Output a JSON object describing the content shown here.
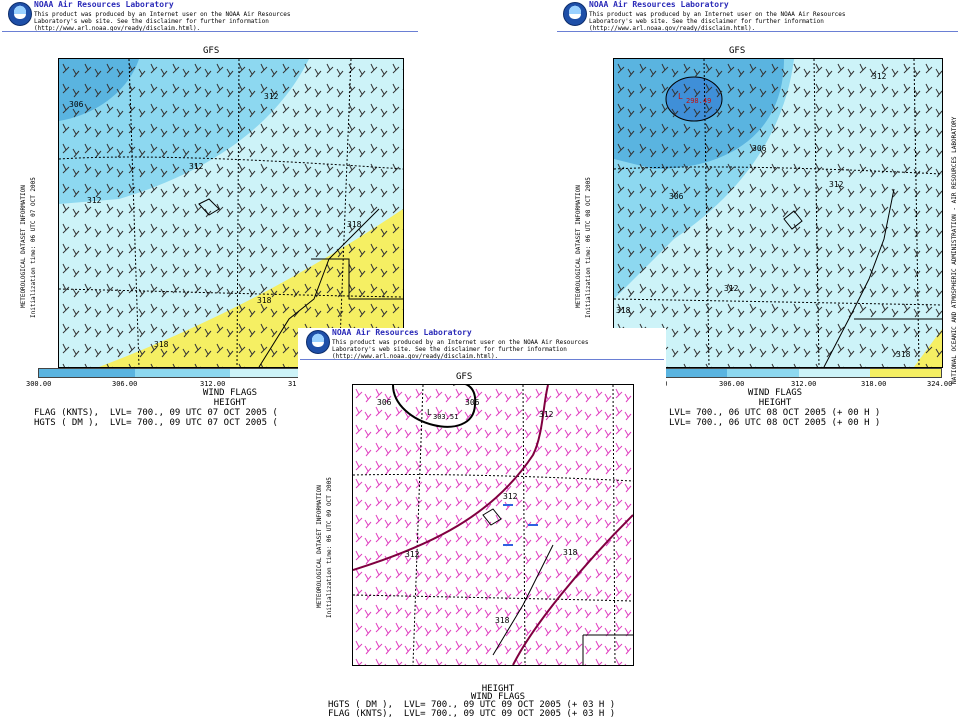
{
  "header": {
    "org": "NOAA Air Resources Laboratory",
    "disclaimer": "This product was produced by an Internet user on the NOAA Air Resources Laboratory's web site.  See the disclaimer for further information (http://www.arl.noaa.gov/ready/disclaim.html)."
  },
  "side_labels": {
    "dataset": "METEOROLOGICAL DATASET INFORMATION",
    "lab": "NATIONAL OCEANIC AND ATMOSPHERIC ADMINISTRATION - AIR RESOURCES LABORATORY"
  },
  "colors": {
    "c300": "#5ab4e0",
    "c306": "#8dd8f0",
    "c312": "#cdf3f8",
    "c318": "#f5ef63",
    "dark": "#3f8fd8",
    "wind_dark": "#333333",
    "wind_pink": "#e040c0",
    "wind_blue": "#3060e0"
  },
  "legend": {
    "ticks": [
      "300.00",
      "306.00",
      "312.00",
      "318.00",
      "324.00"
    ]
  },
  "panels": {
    "left": {
      "model": "GFS",
      "init_time": "Initialization time: 06 UTC 07 OCT 2005",
      "wind_label": "WIND FLAGS",
      "height_label": "HEIGHT",
      "line1": "FLAG (KNTS),  LVL= 700., 09 UTC 07 OCT 2005 (",
      "line2": "HGTS ( DM ),  LVL= 700., 09 UTC 07 OCT 2005 (",
      "ticks": [
        "300.00",
        "306.00",
        "312.00",
        "31"
      ],
      "contours": [
        "306",
        "312",
        "312",
        "312",
        "318",
        "318",
        "318"
      ]
    },
    "right": {
      "model": "GFS",
      "init_time": "Initialization time: 06 UTC 08 OCT 2005",
      "wind_label": "WIND FLAGS",
      "height_label": "HEIGHT",
      "line1": "LVL= 700., 06 UTC 08 OCT 2005 (+ 00 H )",
      "line2": "LVL= 700., 06 UTC 08 OCT 2005 (+ 00 H )",
      "ticks": [
        "00",
        "306.00",
        "312.00",
        "318.00",
        "324.00"
      ],
      "contours": [
        "312",
        "306",
        "306",
        "312",
        "312",
        "318",
        "318",
        "L",
        "298.49"
      ]
    },
    "center": {
      "model": "GFS",
      "init_time": "Initialization time: 06 UTC 09 OCT 2005",
      "height_label": "HEIGHT",
      "wind_label": "WIND FLAGS",
      "line1": "HGTS ( DM ),  LVL= 700., 09 UTC 09 OCT 2005 (+ 03 H )",
      "line2": "FLAG (KNTS),  LVL= 700., 09 UTC 09 OCT 2005 (+ 03 H )",
      "contours": [
        "306",
        "306",
        "312",
        "312",
        "312",
        "318",
        "318",
        "L",
        "303.51"
      ]
    }
  }
}
